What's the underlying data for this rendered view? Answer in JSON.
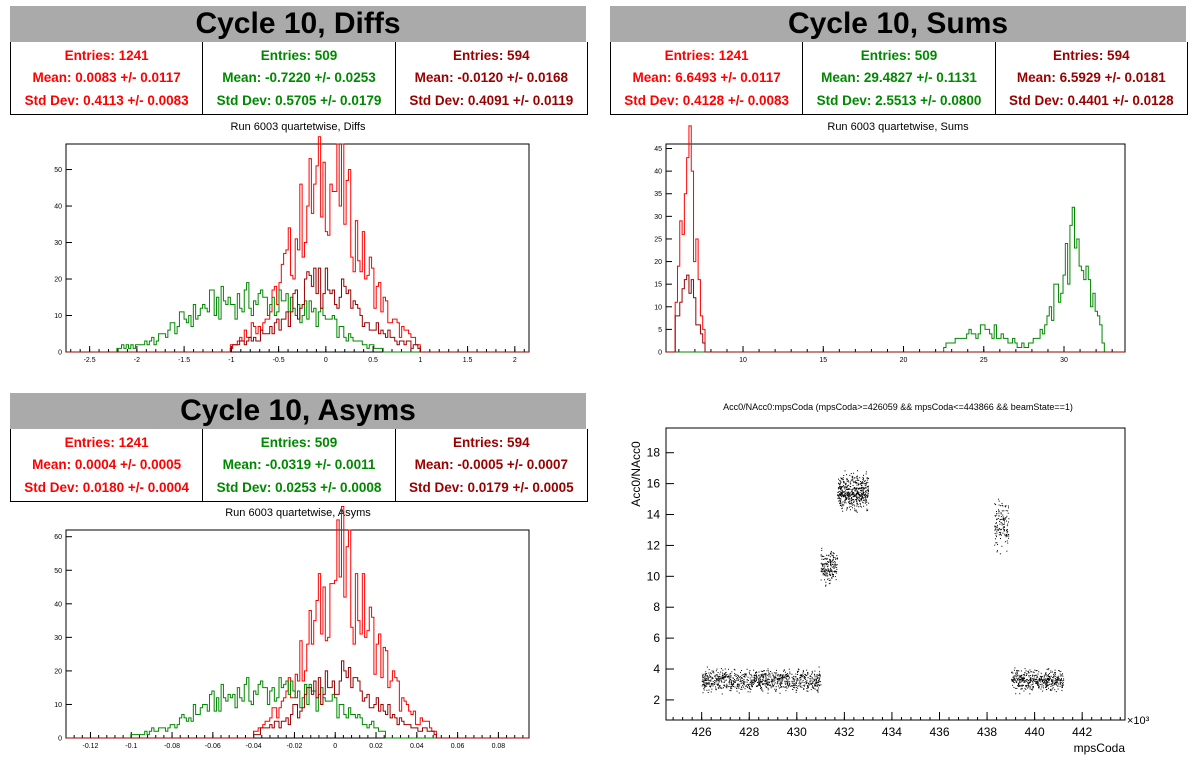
{
  "colors": {
    "red": "#ff0000",
    "green": "#008800",
    "darkred": "#990000",
    "black": "#000000"
  },
  "panels": [
    {
      "title": "Cycle 10, Diffs",
      "subtitle": "Run 6003 quartetwise, Diffs",
      "stats": [
        {
          "entries": "Entries: 1241",
          "mean": "Mean: 0.0083 +/- 0.0117",
          "std": "Std Dev: 0.4113 +/- 0.0083"
        },
        {
          "entries": "Entries: 509",
          "mean": "Mean: -0.7220 +/- 0.0253",
          "std": "Std Dev: 0.5705 +/- 0.0179"
        },
        {
          "entries": "Entries: 594",
          "mean": "Mean: -0.0120 +/- 0.0168",
          "std": "Std Dev: 0.4091 +/- 0.0119"
        }
      ]
    },
    {
      "title": "Cycle 10, Sums",
      "subtitle": "Run 6003 quartetwise, Sums",
      "stats": [
        {
          "entries": "Entries: 1241",
          "mean": "Mean: 6.6493 +/- 0.0117",
          "std": "Std Dev: 0.4128 +/- 0.0083"
        },
        {
          "entries": "Entries: 509",
          "mean": "Mean: 29.4827 +/- 0.1131",
          "std": "Std Dev: 2.5513 +/- 0.0800"
        },
        {
          "entries": "Entries: 594",
          "mean": "Mean: 6.5929 +/- 0.0181",
          "std": "Std Dev: 0.4401 +/- 0.0128"
        }
      ]
    },
    {
      "title": "Cycle 10, Asyms",
      "subtitle": "Run 6003 quartetwise, Asyms",
      "stats": [
        {
          "entries": "Entries: 1241",
          "mean": "Mean: 0.0004 +/- 0.0005",
          "std": "Std Dev: 0.0180 +/- 0.0004"
        },
        {
          "entries": "Entries: 509",
          "mean": "Mean: -0.0319 +/- 0.0011",
          "std": "Std Dev: 0.0253 +/- 0.0008"
        },
        {
          "entries": "Entries: 594",
          "mean": "Mean: -0.0005 +/- 0.0007",
          "std": "Std Dev: 0.0179 +/- 0.0005"
        }
      ]
    }
  ],
  "chart_data": [
    {
      "type": "histogram",
      "name": "diffs",
      "xlim": [
        -2.75,
        2.15
      ],
      "ylim": [
        0,
        57
      ],
      "xticks": [
        -2.5,
        -2,
        -1.5,
        -1,
        -0.5,
        0,
        0.5,
        1,
        1.5,
        2
      ],
      "xtick_labels": [
        "-2.5",
        "-2",
        "-1.5",
        "-1",
        "-0.5",
        "0",
        "0.5",
        "1",
        "1.5",
        "2"
      ],
      "yticks": [
        0,
        10,
        20,
        30,
        40,
        50
      ],
      "series": [
        {
          "color": "red",
          "centers": [
            -1.0,
            -0.6,
            -0.4,
            -0.2,
            0.0,
            0.2,
            0.4,
            0.7,
            1.0
          ],
          "values": [
            2,
            10,
            25,
            40,
            48,
            42,
            25,
            8,
            2
          ]
        },
        {
          "color": "green",
          "centers": [
            -2.2,
            -1.8,
            -1.5,
            -1.2,
            -0.9,
            -0.6,
            -0.3,
            0.0,
            0.3,
            0.6
          ],
          "values": [
            1,
            3,
            9,
            13,
            14,
            14,
            12,
            9,
            3,
            1
          ]
        },
        {
          "color": "darkred",
          "centers": [
            -1.0,
            -0.6,
            -0.4,
            -0.2,
            0.0,
            0.2,
            0.4,
            0.7,
            1.0
          ],
          "values": [
            1,
            5,
            10,
            16,
            19,
            16,
            10,
            4,
            1
          ]
        }
      ]
    },
    {
      "type": "histogram",
      "name": "sums",
      "xlim": [
        5.2,
        33.8
      ],
      "ylim": [
        0,
        46
      ],
      "xticks": [
        10,
        15,
        20,
        25,
        30
      ],
      "xtick_labels": [
        "10",
        "15",
        "20",
        "25",
        "30"
      ],
      "yticks": [
        0,
        5,
        10,
        15,
        20,
        25,
        30,
        35,
        40,
        45
      ],
      "series": [
        {
          "color": "red",
          "centers": [
            5.8,
            6.2,
            6.5,
            6.8,
            7.2,
            7.6
          ],
          "values": [
            10,
            30,
            44,
            35,
            15,
            3
          ]
        },
        {
          "color": "green",
          "centers": [
            22.5,
            24.0,
            25.0,
            26.0,
            27.5,
            29.0,
            30.0,
            30.8,
            31.6,
            32.5
          ],
          "values": [
            1,
            4,
            6,
            4,
            1,
            6,
            18,
            27,
            14,
            3
          ]
        },
        {
          "color": "darkred",
          "centers": [
            5.8,
            6.2,
            6.5,
            6.8,
            7.2,
            7.6
          ],
          "values": [
            5,
            12,
            17,
            13,
            6,
            1
          ]
        }
      ]
    },
    {
      "type": "histogram",
      "name": "asyms",
      "xlim": [
        -0.132,
        0.095
      ],
      "ylim": [
        0,
        62
      ],
      "xticks": [
        -0.12,
        -0.1,
        -0.08,
        -0.06,
        -0.04,
        -0.02,
        0,
        0.02,
        0.04,
        0.06,
        0.08
      ],
      "xtick_labels": [
        "-0.12",
        "-0.1",
        "-0.08",
        "-0.06",
        "-0.04",
        "-0.02",
        "0",
        "0.02",
        "0.04",
        "0.06",
        "0.08"
      ],
      "yticks": [
        0,
        10,
        20,
        30,
        40,
        50,
        60
      ],
      "series": [
        {
          "color": "red",
          "centers": [
            -0.04,
            -0.025,
            -0.015,
            -0.005,
            0.003,
            0.012,
            0.022,
            0.035,
            0.05
          ],
          "values": [
            2,
            10,
            25,
            42,
            52,
            40,
            25,
            8,
            2
          ]
        },
        {
          "color": "green",
          "centers": [
            -0.1,
            -0.08,
            -0.065,
            -0.05,
            -0.035,
            -0.02,
            -0.005,
            0.01,
            0.025
          ],
          "values": [
            1,
            3,
            9,
            13,
            14,
            14,
            11,
            6,
            2
          ]
        },
        {
          "color": "darkred",
          "centers": [
            -0.04,
            -0.025,
            -0.015,
            -0.005,
            0.003,
            0.012,
            0.022,
            0.035,
            0.05
          ],
          "values": [
            1,
            5,
            10,
            16,
            19,
            16,
            10,
            4,
            1
          ]
        }
      ]
    },
    {
      "type": "scatter",
      "name": "acc0-vs-mpscoda",
      "title": "Acc0/NAcc0:mpsCoda (mpsCoda>=426059 && mpsCoda<=443866 && beamState==1)",
      "xlabel": "mpsCoda",
      "ylabel": "Acc0/NAcc0",
      "xscale_label": "×10³",
      "xlim": [
        424.5,
        443.8
      ],
      "ylim": [
        0.7,
        19.6
      ],
      "xticks": [
        426,
        428,
        430,
        432,
        434,
        436,
        438,
        440,
        442
      ],
      "xtick_labels": [
        "426",
        "428",
        "430",
        "432",
        "434",
        "436",
        "438",
        "440",
        "442"
      ],
      "yticks": [
        2,
        4,
        6,
        8,
        10,
        12,
        14,
        16,
        18
      ],
      "ytick_labels": [
        "2",
        "4",
        "6",
        "8",
        "10",
        "12",
        "14",
        "16",
        "18"
      ],
      "clusters": [
        {
          "x": [
            426.0,
            431.0
          ],
          "y_center": 3.3,
          "y_spread": 0.5,
          "count": 900
        },
        {
          "x": [
            431.0,
            431.7
          ],
          "y_center": 10.7,
          "y_spread": 0.8,
          "count": 180
        },
        {
          "x": [
            431.7,
            433.0
          ],
          "y_center": 15.5,
          "y_spread": 0.8,
          "count": 500
        },
        {
          "x": [
            438.3,
            438.9
          ],
          "y_center": 13.2,
          "y_spread": 1.2,
          "count": 140
        },
        {
          "x": [
            439.0,
            441.2
          ],
          "y_center": 3.3,
          "y_spread": 0.5,
          "count": 450
        }
      ]
    }
  ]
}
